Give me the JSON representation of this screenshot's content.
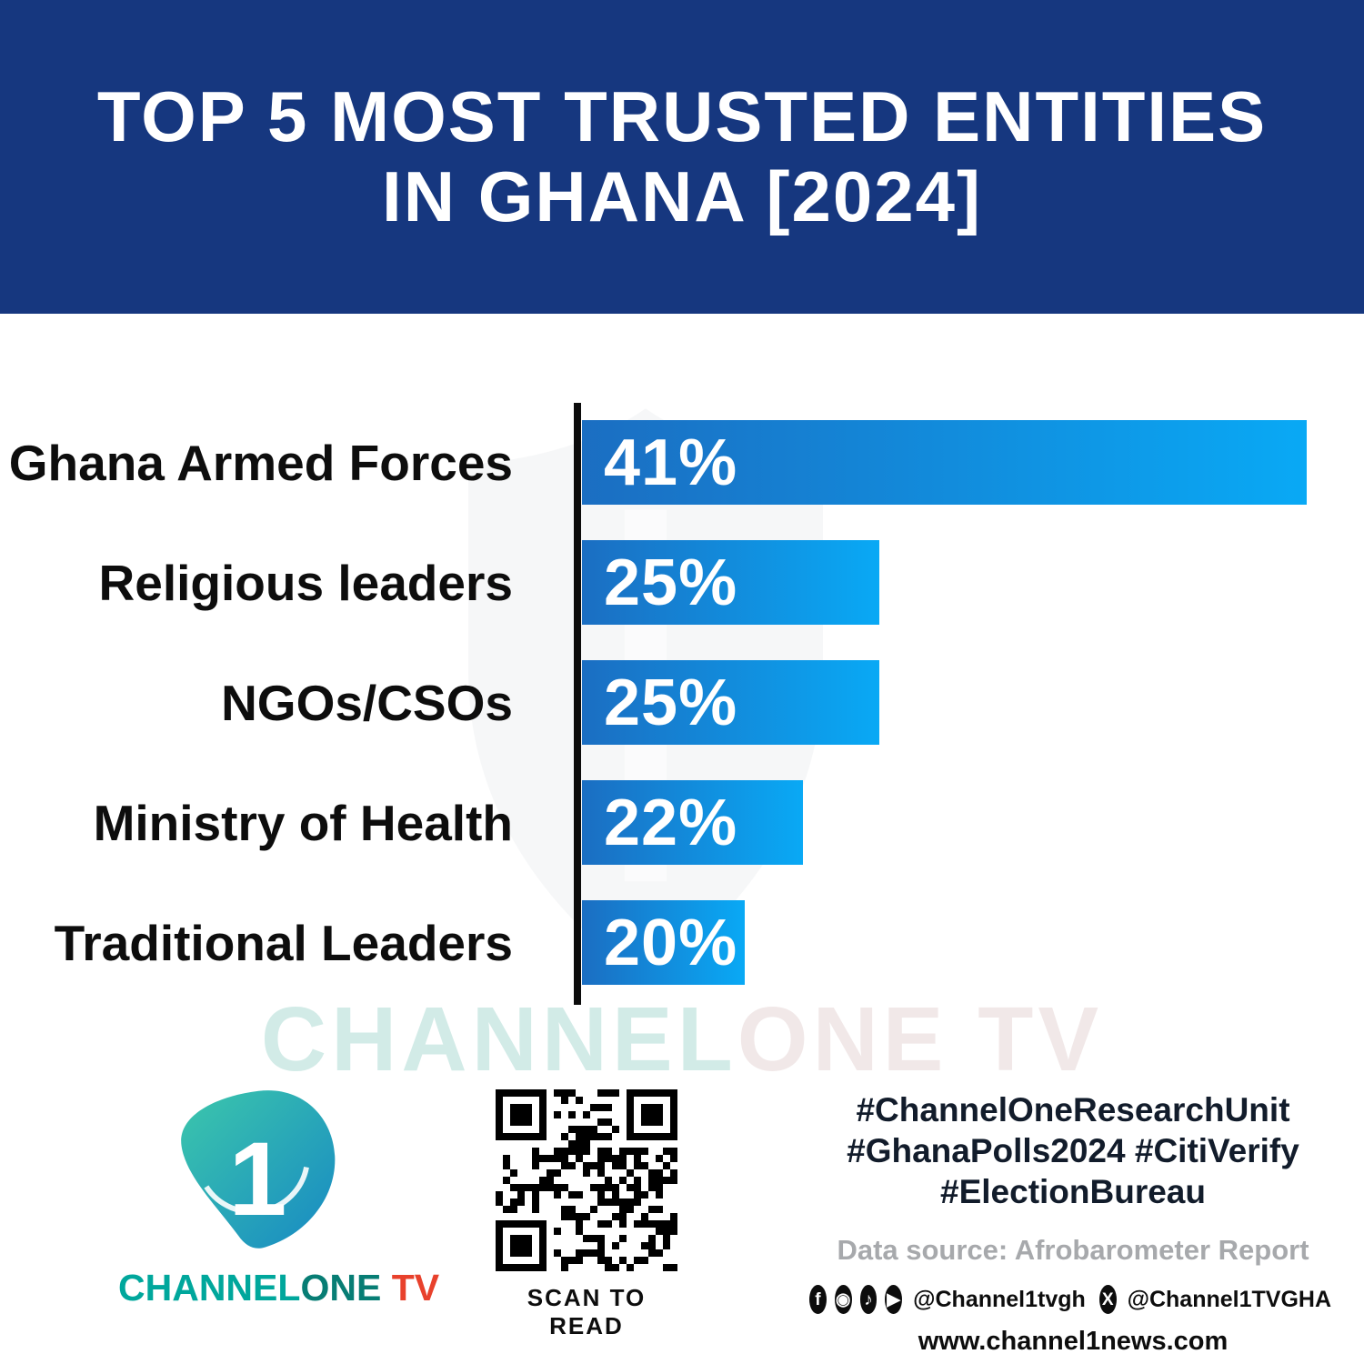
{
  "header": {
    "title_line1": "TOP 5 MOST TRUSTED ENTITIES",
    "title_line2": "IN GHANA [2024]"
  },
  "chart_data": {
    "type": "bar",
    "orientation": "horizontal",
    "title": "Top 5 Most Trusted Entities in Ghana [2024]",
    "categories": [
      "Ghana Armed Forces",
      "Religious leaders",
      "NGOs/CSOs",
      "Ministry of Health",
      "Traditional Leaders"
    ],
    "values": [
      41,
      25,
      25,
      22,
      20
    ],
    "value_labels": [
      "41%",
      "25%",
      "25%",
      "22%",
      "20%"
    ],
    "unit": "percent",
    "xlim": [
      0,
      41
    ],
    "grid": false,
    "legend": false,
    "bars_to_scale": false,
    "bar_widths_pct": [
      100,
      41,
      41,
      30.5,
      22.5
    ],
    "bar_gradient": [
      "#1b6ec2",
      "#09a9f5"
    ],
    "axis_color": "#0c0c0c",
    "source": "Afrobarometer Report"
  },
  "watermark": {
    "part1": "CHANNEL",
    "part2": "ONE TV"
  },
  "footer": {
    "logo_number": "1",
    "brand_channel": "CHANNEL",
    "brand_one": "ONE",
    "brand_tv": " TV",
    "qr_caption": "SCAN TO READ",
    "hashtags_line1": "#ChannelOneResearchUnit",
    "hashtags_line2": "#GhanaPolls2024 #CitiVerify",
    "hashtags_line3": "#ElectionBureau",
    "data_source": "Data source: Afrobarometer Report",
    "social_icons": [
      {
        "name": "facebook-icon",
        "glyph": "f"
      },
      {
        "name": "instagram-icon",
        "glyph": "◉"
      },
      {
        "name": "tiktok-icon",
        "glyph": "♪"
      },
      {
        "name": "youtube-icon",
        "glyph": "▶"
      }
    ],
    "handle1": "@Channel1tvgh",
    "x_icon_glyph": "X",
    "handle2": "@Channel1TVGHA",
    "website": "www.channel1news.com"
  },
  "colors": {
    "header_bg": "#16377f",
    "accent_teal": "#00a79c",
    "accent_red": "#e8412c",
    "text_dark": "#0d0d0d",
    "muted_gray": "#a7a9ac"
  }
}
